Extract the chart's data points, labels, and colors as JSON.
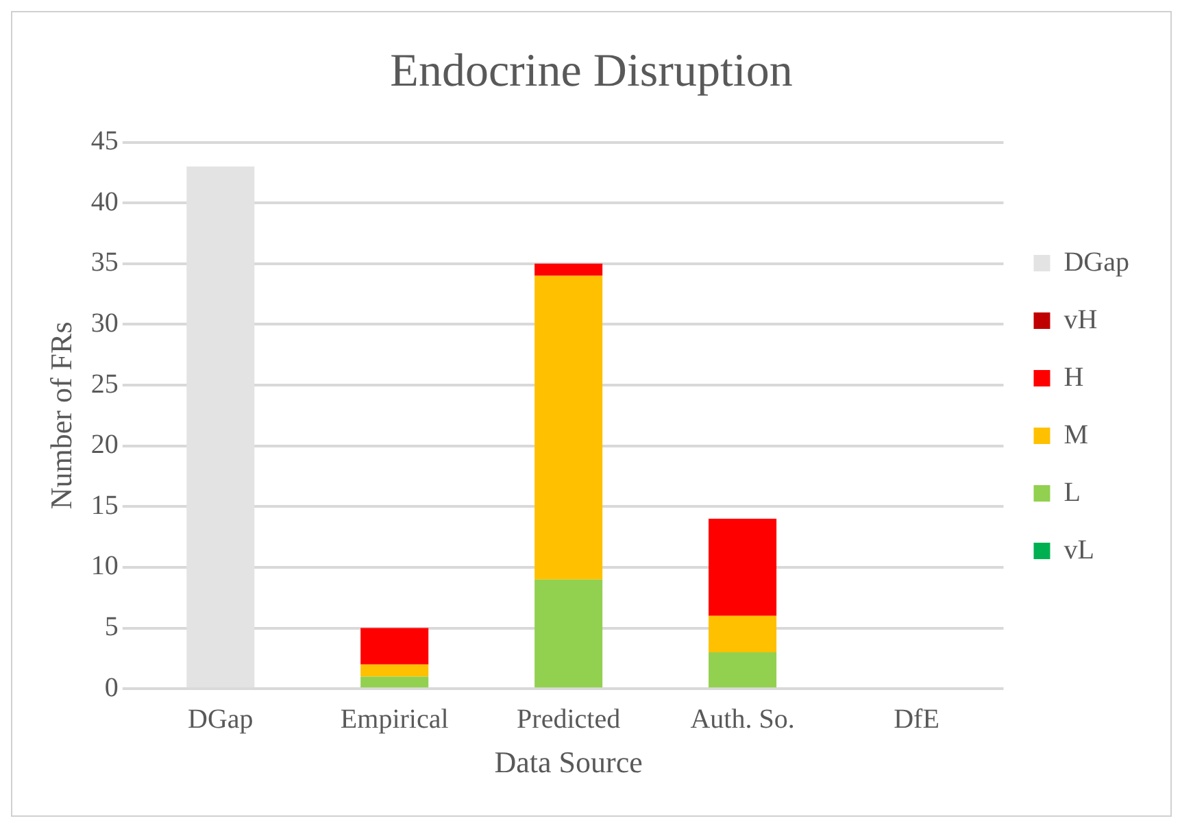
{
  "chart_data": {
    "type": "bar",
    "title": "Endocrine Disruption",
    "xlabel": "Data Source",
    "ylabel": "Number of FRs",
    "categories": [
      "DGap",
      "Empirical",
      "Predicted",
      "Auth. So.",
      "DfE"
    ],
    "stacked": true,
    "ylim": [
      0,
      45
    ],
    "yticks": [
      0,
      5,
      10,
      15,
      20,
      25,
      30,
      35,
      40,
      45
    ],
    "grid": "y",
    "legend": "right",
    "series": [
      {
        "name": "vL",
        "color": "#00b050",
        "values": [
          null,
          null,
          null,
          null,
          null
        ]
      },
      {
        "name": "L",
        "color": "#92d050",
        "values": [
          null,
          1,
          9,
          3,
          null
        ]
      },
      {
        "name": "M",
        "color": "#ffc000",
        "values": [
          null,
          1,
          25,
          3,
          null
        ]
      },
      {
        "name": "H",
        "color": "#ff0000",
        "values": [
          null,
          3,
          1,
          8,
          null
        ]
      },
      {
        "name": "vH",
        "color": "#c00000",
        "values": [
          null,
          null,
          null,
          null,
          null
        ]
      },
      {
        "name": "DGap",
        "color": "#e3e3e3",
        "values": [
          43,
          null,
          null,
          null,
          null
        ]
      }
    ]
  }
}
